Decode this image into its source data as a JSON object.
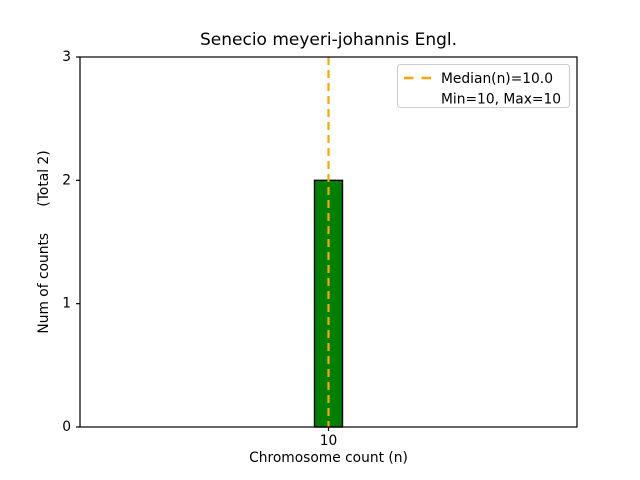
{
  "chart_data": {
    "type": "bar",
    "title": "Senecio meyeri-johannis Engl.",
    "xlabel": "Chromosome count (n)",
    "ylabel": "Num of counts      (Total 2)",
    "total_counts": 2,
    "bars": [
      {
        "x": 10,
        "count": 2
      }
    ],
    "median_n": 10.0,
    "min_n": 10,
    "max_n": 10,
    "xlim": [
      9.5,
      10.5
    ],
    "ylim": [
      0,
      3
    ],
    "xticks": [
      10
    ],
    "yticks": [
      0,
      1,
      2,
      3
    ],
    "grid": false,
    "legend_position": "upper right",
    "legend_labels": [
      "Median(n)=10.0",
      "Min=10, Max=10"
    ],
    "colors": {
      "bar_fill": "#008000",
      "bar_edge": "#000000",
      "median_line": "#ffa500",
      "legend_border": "#cccccc",
      "axes_edge": "#000000",
      "background": "#ffffff",
      "text": "#000000"
    }
  }
}
